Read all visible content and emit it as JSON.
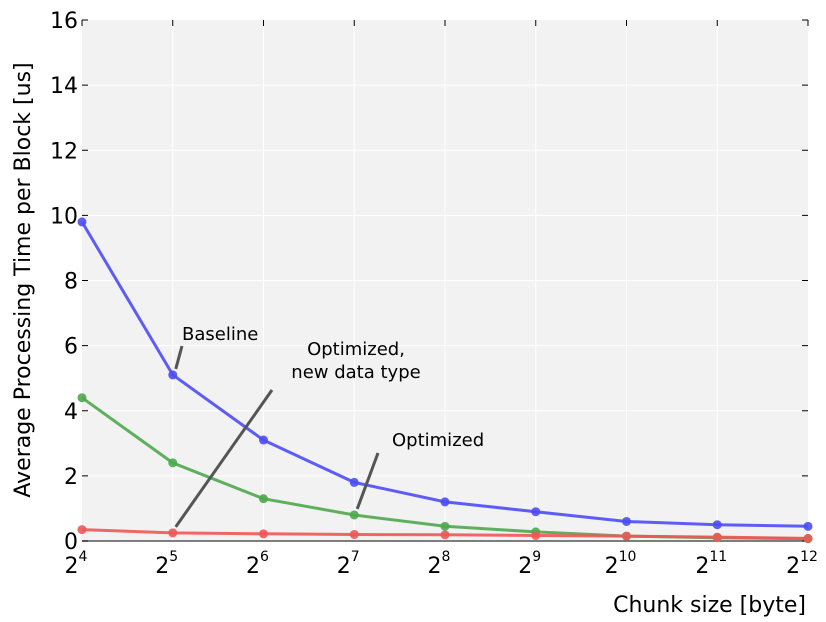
{
  "chart_data": {
    "type": "line",
    "title": "",
    "xlabel": "Chunk size [byte]",
    "ylabel": "Average Processing Time per Block [us]",
    "x_scale": "log2",
    "x_tick_base": "2",
    "x": [
      16,
      32,
      64,
      128,
      256,
      512,
      1024,
      2048,
      4096
    ],
    "x_tick_exponents": [
      "4",
      "5",
      "6",
      "7",
      "8",
      "9",
      "10",
      "11",
      "12"
    ],
    "ylim": [
      0,
      16
    ],
    "y_ticks": [
      "0",
      "2",
      "4",
      "6",
      "8",
      "10",
      "12",
      "14",
      "16"
    ],
    "grid": true,
    "legend": "none",
    "background": "#f2f2f2",
    "series": [
      {
        "name": "Baseline",
        "color": "#4c4cf5",
        "values": [
          9.8,
          5.1,
          3.1,
          1.8,
          1.2,
          0.9,
          0.6,
          0.5,
          0.45
        ]
      },
      {
        "name": "Optimized",
        "color": "#4ea84e",
        "values": [
          4.4,
          2.4,
          1.3,
          0.8,
          0.45,
          0.28,
          0.15,
          0.1,
          0.07
        ]
      },
      {
        "name": "Optimized,\nnew data type",
        "color": "#f05656",
        "values": [
          0.35,
          0.25,
          0.22,
          0.2,
          0.19,
          0.17,
          0.15,
          0.12,
          0.08
        ]
      }
    ],
    "annotations": [
      {
        "text": [
          "Baseline"
        ],
        "series": 0,
        "point": 1
      },
      {
        "text": [
          "Optimized,",
          "new data type"
        ],
        "series": 2,
        "point": 1
      },
      {
        "text": [
          "Optimized"
        ],
        "series": 1,
        "point": 3
      }
    ]
  }
}
